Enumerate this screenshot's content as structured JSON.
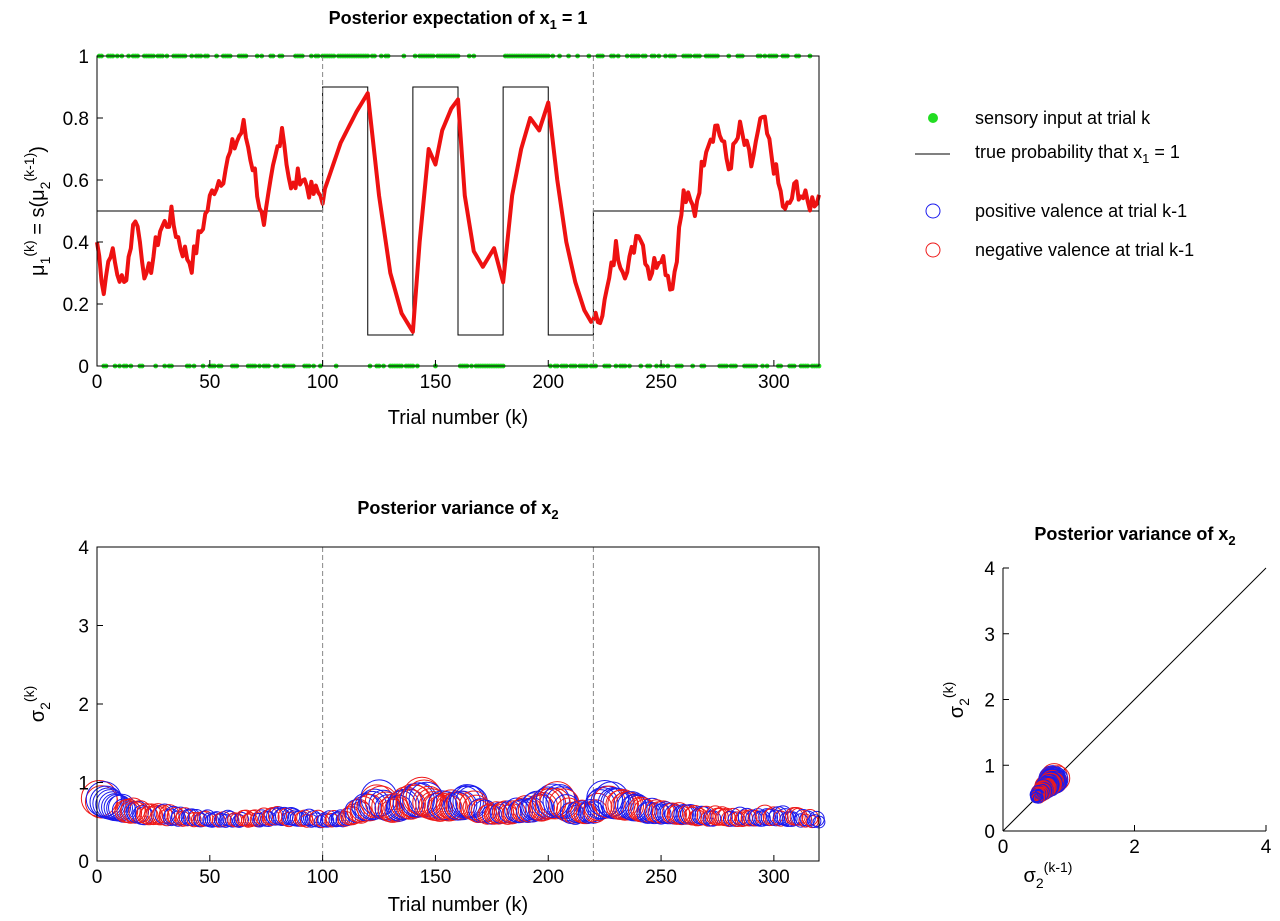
{
  "colors": {
    "input": "#22dd22",
    "belief": "#ee1111",
    "true_prob": "#000000",
    "positive": "#1a1aee",
    "negative": "#ee1a1a",
    "vline": "#888888"
  },
  "legend": [
    {
      "marker": "dot",
      "color": "#22dd22",
      "label": "sensory input at trial k"
    },
    {
      "marker": "line",
      "color": "#000000",
      "label_pre": "true probability that x",
      "label_sub": "1",
      "label_post": " = 1"
    },
    {
      "marker": "circle",
      "color": "#1a1aee",
      "label": "positive valence at trial k-1"
    },
    {
      "marker": "circle",
      "color": "#ee1a1a",
      "label": "negative valence at trial k-1"
    }
  ],
  "chart_data": [
    {
      "type": "line",
      "title_pre": "Posterior expectation of x",
      "title_sub": "1",
      "title_post": " = 1",
      "xlabel": "Trial number (k)",
      "ylabel_text": "μ1(k) = s(μ2(k-1))",
      "xlim": [
        0,
        320
      ],
      "ylim": [
        0,
        1
      ],
      "xticks": [
        0,
        50,
        100,
        150,
        200,
        250,
        300
      ],
      "yticks": [
        0,
        0.2,
        0.4,
        0.6,
        0.8,
        1
      ],
      "vlines": [
        100,
        220
      ],
      "true_probability": {
        "x": [
          0,
          100,
          100,
          120,
          120,
          140,
          140,
          160,
          160,
          180,
          180,
          200,
          200,
          220,
          220,
          320
        ],
        "y": [
          0.5,
          0.5,
          0.9,
          0.9,
          0.1,
          0.1,
          0.9,
          0.9,
          0.1,
          0.1,
          0.9,
          0.9,
          0.1,
          0.1,
          0.5,
          0.5
        ]
      },
      "belief_keypoints": {
        "x": [
          0,
          3,
          6,
          9,
          12,
          17,
          22,
          28,
          33,
          37,
          42,
          47,
          52,
          56,
          60,
          65,
          70,
          74,
          78,
          82,
          86,
          90,
          95,
          100,
          108,
          115,
          120,
          125,
          130,
          135,
          140,
          143,
          147,
          150,
          153,
          157,
          160,
          163,
          167,
          171,
          176,
          180,
          184,
          188,
          192,
          196,
          200,
          204,
          208,
          212,
          216,
          220,
          225,
          230,
          235,
          240,
          245,
          250,
          255,
          260,
          265,
          270,
          275,
          280,
          285,
          290,
          295,
          300,
          305,
          310,
          315,
          320
        ],
        "y": [
          0.4,
          0.25,
          0.38,
          0.3,
          0.26,
          0.49,
          0.27,
          0.44,
          0.48,
          0.39,
          0.33,
          0.46,
          0.58,
          0.62,
          0.7,
          0.77,
          0.62,
          0.43,
          0.63,
          0.78,
          0.56,
          0.62,
          0.56,
          0.55,
          0.72,
          0.82,
          0.88,
          0.55,
          0.3,
          0.17,
          0.11,
          0.4,
          0.7,
          0.65,
          0.76,
          0.83,
          0.86,
          0.55,
          0.37,
          0.32,
          0.38,
          0.27,
          0.55,
          0.7,
          0.8,
          0.76,
          0.85,
          0.6,
          0.4,
          0.27,
          0.18,
          0.13,
          0.2,
          0.38,
          0.3,
          0.45,
          0.3,
          0.37,
          0.25,
          0.55,
          0.5,
          0.72,
          0.78,
          0.64,
          0.76,
          0.65,
          0.8,
          0.65,
          0.49,
          0.58,
          0.52,
          0.55
        ]
      }
    },
    {
      "type": "scatter",
      "title_pre": "Posterior variance of x",
      "title_sub": "2",
      "title_post": "",
      "xlabel": "Trial number (k)",
      "ylabel_text": "σ2(k)",
      "xlim": [
        0,
        320
      ],
      "ylim": [
        0,
        4
      ],
      "xticks": [
        0,
        50,
        100,
        150,
        200,
        250,
        300
      ],
      "yticks": [
        0,
        1,
        2,
        3,
        4
      ],
      "vlines": [
        100,
        220
      ],
      "variance_keypoints": {
        "x": [
          0,
          10,
          20,
          40,
          60,
          80,
          100,
          110,
          120,
          125,
          130,
          140,
          145,
          150,
          160,
          165,
          170,
          180,
          190,
          200,
          205,
          210,
          220,
          225,
          230,
          240,
          260,
          280,
          300,
          320
        ],
        "y": [
          0.8,
          0.68,
          0.6,
          0.55,
          0.52,
          0.56,
          0.52,
          0.55,
          0.68,
          0.78,
          0.65,
          0.75,
          0.82,
          0.67,
          0.72,
          0.75,
          0.62,
          0.6,
          0.65,
          0.72,
          0.78,
          0.6,
          0.62,
          0.78,
          0.75,
          0.65,
          0.58,
          0.55,
          0.57,
          0.52
        ]
      }
    },
    {
      "type": "scatter",
      "title_pre": "Posterior variance of x",
      "title_sub": "2",
      "title_post": "",
      "xlabel_text": "σ2(k-1)",
      "ylabel_text": "σ2(k)",
      "xlim": [
        0,
        4
      ],
      "ylim": [
        0,
        4
      ],
      "xticks": [
        0,
        2,
        4
      ],
      "yticks": [
        0,
        1,
        2,
        3,
        4
      ],
      "diagonal": [
        [
          0,
          0
        ],
        [
          4,
          4
        ]
      ],
      "cluster_range": [
        0.5,
        0.85
      ]
    }
  ]
}
